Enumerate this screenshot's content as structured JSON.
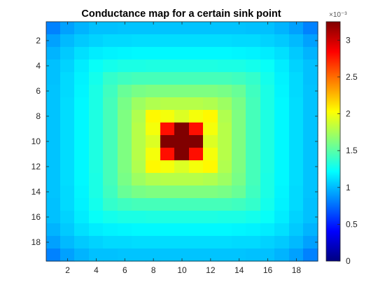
{
  "chart_data": {
    "type": "heatmap",
    "title": "Conductance map for a certain sink point",
    "xlabel": "",
    "ylabel": "",
    "x_range": [
      1,
      19
    ],
    "y_range": [
      1,
      19
    ],
    "x_ticks": [
      2,
      4,
      6,
      8,
      10,
      12,
      14,
      16,
      18
    ],
    "y_ticks": [
      2,
      4,
      6,
      8,
      10,
      12,
      14,
      16,
      18
    ],
    "y_direction": "reverse",
    "grid": false,
    "colormap": "jet",
    "clim": [
      0,
      0.00325
    ],
    "colorbar": {
      "placement": "right",
      "multiplier_label": "×10⁻³",
      "ticks": [
        0,
        0.5,
        1,
        1.5,
        2,
        2.5,
        3
      ],
      "tick_labels": [
        "0",
        "0.5",
        "1",
        "1.5",
        "2",
        "2.5",
        "3"
      ]
    },
    "values_note": "values in units of 1e-3",
    "values": [
      [
        0.82,
        0.92,
        0.98,
        1.02,
        1.02,
        1.03,
        1.03,
        1.03,
        1.03,
        1.03,
        1.03,
        1.03,
        1.03,
        1.03,
        1.02,
        1.02,
        0.98,
        0.92,
        0.82
      ],
      [
        0.92,
        1.0,
        1.05,
        1.08,
        1.1,
        1.1,
        1.11,
        1.11,
        1.11,
        1.11,
        1.11,
        1.11,
        1.11,
        1.1,
        1.1,
        1.08,
        1.05,
        1.0,
        0.92
      ],
      [
        0.98,
        1.05,
        1.12,
        1.16,
        1.18,
        1.19,
        1.2,
        1.2,
        1.2,
        1.2,
        1.2,
        1.2,
        1.2,
        1.19,
        1.18,
        1.16,
        1.12,
        1.05,
        0.98
      ],
      [
        1.02,
        1.08,
        1.16,
        1.24,
        1.28,
        1.3,
        1.3,
        1.31,
        1.31,
        1.31,
        1.31,
        1.31,
        1.3,
        1.3,
        1.28,
        1.24,
        1.16,
        1.08,
        1.02
      ],
      [
        1.02,
        1.1,
        1.18,
        1.28,
        1.38,
        1.42,
        1.44,
        1.44,
        1.44,
        1.44,
        1.44,
        1.44,
        1.44,
        1.42,
        1.38,
        1.28,
        1.18,
        1.1,
        1.02
      ],
      [
        1.03,
        1.1,
        1.19,
        1.3,
        1.42,
        1.55,
        1.6,
        1.62,
        1.62,
        1.62,
        1.62,
        1.62,
        1.6,
        1.55,
        1.42,
        1.3,
        1.19,
        1.1,
        1.03
      ],
      [
        1.03,
        1.11,
        1.2,
        1.3,
        1.44,
        1.6,
        1.72,
        1.78,
        1.8,
        1.8,
        1.8,
        1.78,
        1.72,
        1.6,
        1.44,
        1.3,
        1.2,
        1.11,
        1.03
      ],
      [
        1.03,
        1.11,
        1.2,
        1.31,
        1.44,
        1.62,
        1.78,
        2.05,
        2.0,
        1.92,
        2.0,
        2.05,
        1.78,
        1.62,
        1.44,
        1.31,
        1.2,
        1.11,
        1.03
      ],
      [
        1.03,
        1.11,
        1.2,
        1.31,
        1.44,
        1.62,
        1.8,
        2.0,
        2.8,
        3.3,
        2.8,
        2.0,
        1.8,
        1.62,
        1.44,
        1.31,
        1.2,
        1.11,
        1.03
      ],
      [
        1.03,
        1.11,
        1.2,
        1.31,
        1.44,
        1.62,
        1.8,
        1.92,
        3.3,
        3.3,
        3.3,
        1.92,
        1.8,
        1.62,
        1.44,
        1.31,
        1.2,
        1.11,
        1.03
      ],
      [
        1.03,
        1.11,
        1.2,
        1.31,
        1.44,
        1.62,
        1.8,
        2.0,
        2.8,
        3.3,
        2.8,
        2.0,
        1.8,
        1.62,
        1.44,
        1.31,
        1.2,
        1.11,
        1.03
      ],
      [
        1.03,
        1.11,
        1.2,
        1.31,
        1.44,
        1.62,
        1.78,
        2.05,
        2.0,
        1.92,
        2.0,
        2.05,
        1.78,
        1.62,
        1.44,
        1.31,
        1.2,
        1.11,
        1.03
      ],
      [
        1.03,
        1.11,
        1.2,
        1.3,
        1.44,
        1.6,
        1.72,
        1.78,
        1.8,
        1.8,
        1.8,
        1.78,
        1.72,
        1.6,
        1.44,
        1.3,
        1.2,
        1.11,
        1.03
      ],
      [
        1.03,
        1.1,
        1.19,
        1.3,
        1.42,
        1.55,
        1.6,
        1.62,
        1.62,
        1.62,
        1.62,
        1.62,
        1.6,
        1.55,
        1.42,
        1.3,
        1.19,
        1.1,
        1.03
      ],
      [
        1.02,
        1.1,
        1.18,
        1.28,
        1.38,
        1.42,
        1.44,
        1.44,
        1.44,
        1.44,
        1.44,
        1.44,
        1.44,
        1.42,
        1.38,
        1.28,
        1.18,
        1.1,
        1.02
      ],
      [
        1.02,
        1.08,
        1.16,
        1.24,
        1.28,
        1.3,
        1.3,
        1.31,
        1.31,
        1.31,
        1.31,
        1.31,
        1.3,
        1.3,
        1.28,
        1.24,
        1.16,
        1.08,
        1.02
      ],
      [
        0.98,
        1.05,
        1.12,
        1.16,
        1.18,
        1.19,
        1.2,
        1.2,
        1.2,
        1.2,
        1.2,
        1.2,
        1.2,
        1.19,
        1.18,
        1.16,
        1.12,
        1.05,
        0.98
      ],
      [
        0.92,
        1.0,
        1.05,
        1.08,
        1.1,
        1.1,
        1.11,
        1.11,
        1.11,
        1.11,
        1.11,
        1.11,
        1.11,
        1.1,
        1.1,
        1.08,
        1.05,
        1.0,
        0.92
      ],
      [
        0.82,
        0.92,
        0.98,
        1.02,
        1.02,
        1.03,
        1.03,
        1.03,
        1.03,
        1.03,
        1.03,
        1.03,
        1.03,
        1.03,
        1.02,
        1.02,
        0.98,
        0.92,
        0.82
      ]
    ]
  }
}
